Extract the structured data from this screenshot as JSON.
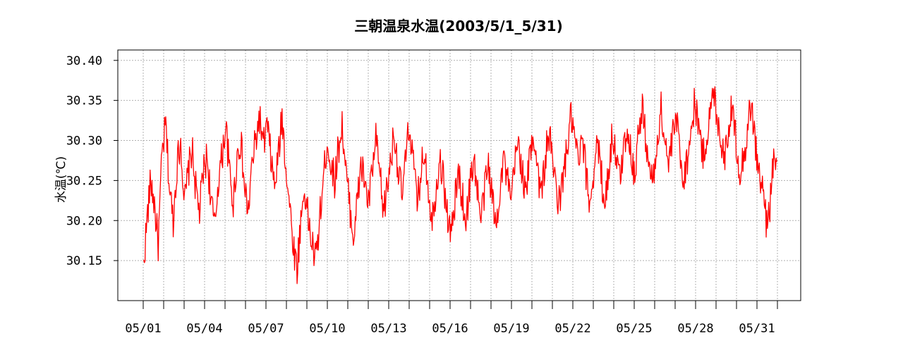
{
  "chart_data": {
    "type": "line",
    "title": "三朝温泉水温(2003/5/1_5/31)",
    "xlabel": "",
    "ylabel": "水温(℃)",
    "ylim": [
      30.1,
      30.413
    ],
    "yticks": [
      "30.15",
      "30.20",
      "30.25",
      "30.30",
      "30.35",
      "30.40"
    ],
    "xticks": [
      "05/01",
      "05/04",
      "05/07",
      "05/10",
      "05/13",
      "05/16",
      "05/19",
      "05/22",
      "05/25",
      "05/28",
      "05/31"
    ],
    "grid": true,
    "legend": "none",
    "line_color": "#ff0000",
    "series": [
      {
        "x_start": "05/01",
        "x_end": "06/01",
        "values": [
          30.14,
          30.2,
          30.25,
          30.22,
          30.17,
          30.28,
          30.32,
          30.24,
          30.2,
          30.27,
          30.3,
          30.22,
          30.26,
          30.29,
          30.24,
          30.21,
          30.26,
          30.28,
          30.23,
          30.19,
          30.25,
          30.28,
          30.32,
          30.26,
          30.22,
          30.28,
          30.3,
          30.24,
          30.21,
          30.27,
          30.3,
          30.33,
          30.29,
          30.32,
          30.28,
          30.24,
          30.28,
          30.33,
          30.27,
          30.22,
          30.17,
          30.14,
          30.2,
          30.24,
          30.2,
          30.17,
          30.15,
          30.2,
          30.25,
          30.3,
          30.27,
          30.25,
          30.29,
          30.32,
          30.26,
          30.22,
          30.18,
          30.22,
          30.27,
          30.25,
          30.22,
          30.26,
          30.3,
          30.26,
          30.21,
          30.24,
          30.28,
          30.31,
          30.26,
          30.23,
          30.28,
          30.32,
          30.27,
          30.22,
          30.26,
          30.29,
          30.24,
          30.2,
          30.24,
          30.28,
          30.25,
          30.21,
          30.18,
          30.22,
          30.26,
          30.23,
          30.2,
          30.24,
          30.28,
          30.24,
          30.2,
          30.24,
          30.27,
          30.23,
          30.19,
          30.24,
          30.28,
          30.25,
          30.22,
          30.27,
          30.3,
          30.26,
          30.23,
          30.28,
          30.31,
          30.27,
          30.23,
          30.27,
          30.31,
          30.28,
          30.24,
          30.22,
          30.26,
          30.29,
          30.33,
          30.3,
          30.27,
          30.3,
          30.26,
          30.22,
          30.26,
          30.3,
          30.26,
          30.22,
          30.26,
          30.31,
          30.28,
          30.25,
          30.29,
          30.32,
          30.28,
          30.26,
          30.31,
          30.34,
          30.3,
          30.26,
          30.25,
          30.3,
          30.34,
          30.3,
          30.27,
          30.3,
          30.33,
          30.29,
          30.25,
          30.28,
          30.31,
          30.35,
          30.32,
          30.28,
          30.3,
          30.33,
          30.36,
          30.33,
          30.3,
          30.28,
          30.32,
          30.34,
          30.3,
          30.26,
          30.28,
          30.31,
          30.35,
          30.3,
          30.26,
          30.24,
          30.2,
          30.22,
          30.28,
          30.26
        ]
      }
    ]
  }
}
